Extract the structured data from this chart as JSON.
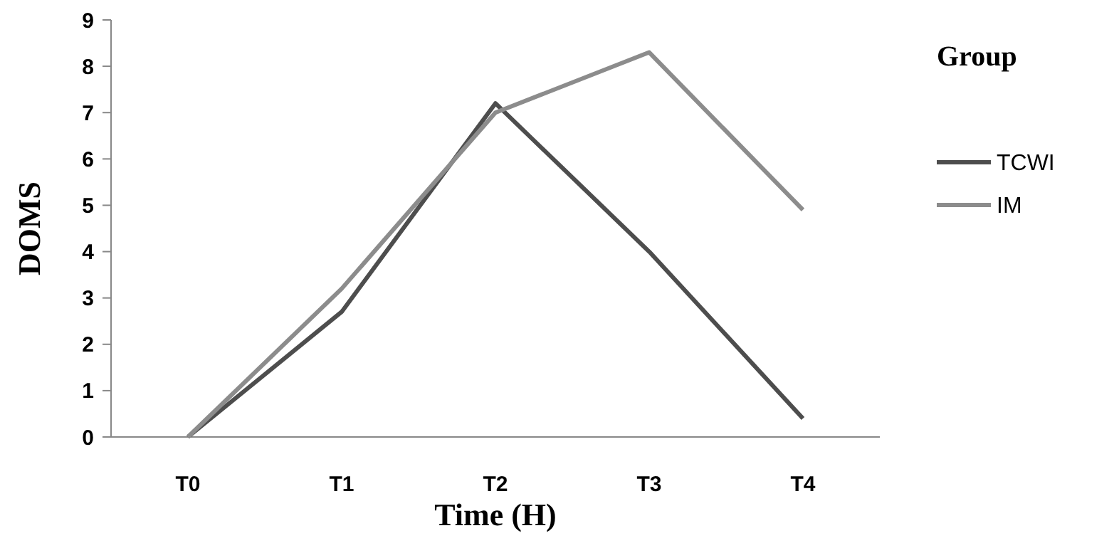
{
  "chart_data": {
    "type": "line",
    "xlabel": "Time (H)",
    "ylabel": "DOMS",
    "legend_title": "Group",
    "categories": [
      "T0",
      "T1",
      "T2",
      "T3",
      "T4"
    ],
    "series": [
      {
        "name": "TCWI",
        "color": "#4d4d4d",
        "values": [
          0,
          2.7,
          7.2,
          4.0,
          0.4
        ]
      },
      {
        "name": "IM",
        "color": "#8c8c8c",
        "values": [
          0,
          3.2,
          7.0,
          8.3,
          4.9
        ]
      }
    ],
    "ylim": [
      0,
      9
    ],
    "yticks": [
      0,
      1,
      2,
      3,
      4,
      5,
      6,
      7,
      8,
      9
    ],
    "grid": false,
    "legend": "right",
    "marker": "none",
    "line_style": "solid"
  }
}
